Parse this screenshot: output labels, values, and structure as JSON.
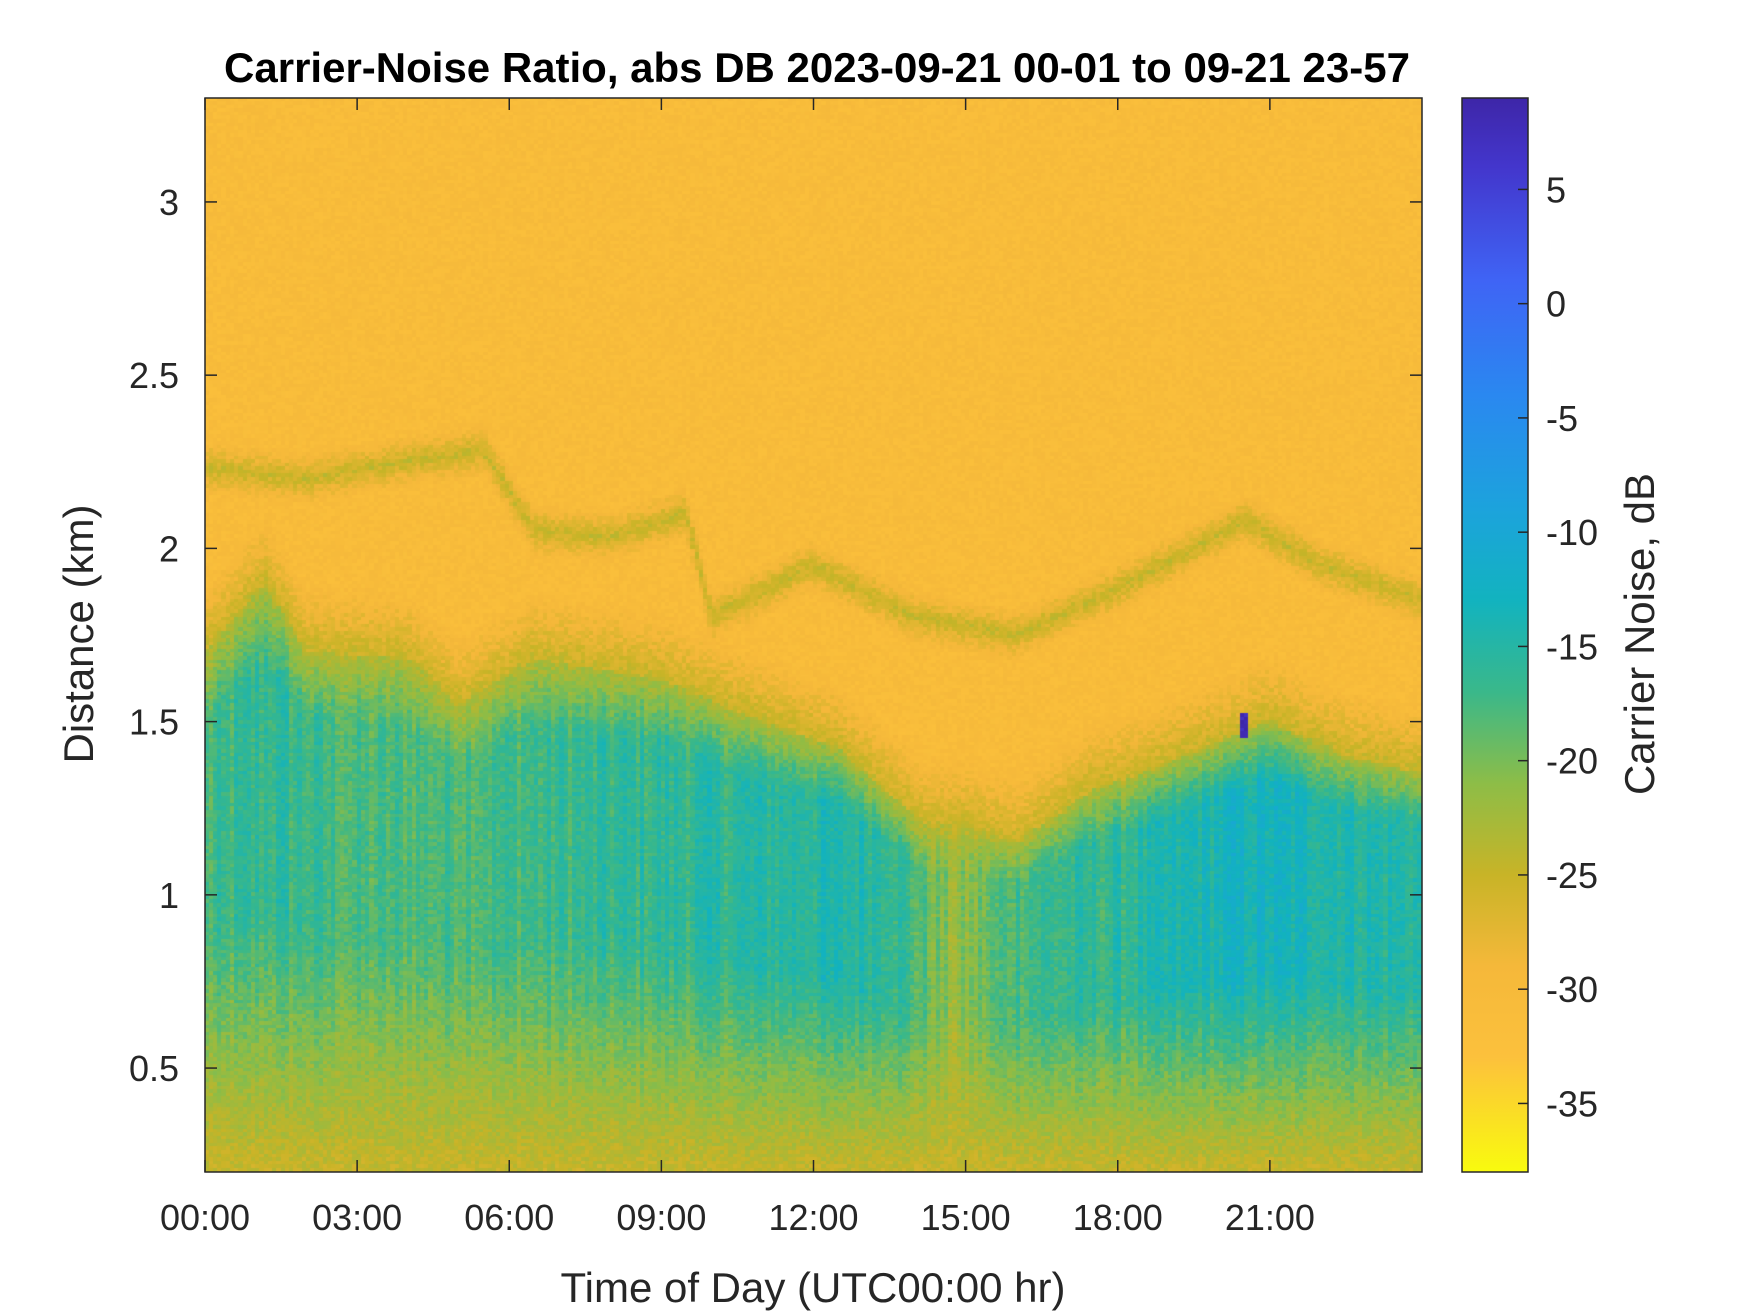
{
  "chart_data": {
    "type": "heatmap",
    "title": "Carrier-Noise Ratio, abs DB 2023-09-21 00-01 to 09-21 23-57",
    "xlabel": "Time of Day (UTC00:00 hr)",
    "ylabel": "Distance (km)",
    "colorbar_label": "Carrier Noise, dB",
    "x_ticks": [
      "00:00",
      "03:00",
      "06:00",
      "09:00",
      "12:00",
      "15:00",
      "18:00",
      "21:00"
    ],
    "x_tick_hours": [
      0,
      3,
      6,
      9,
      12,
      15,
      18,
      21
    ],
    "xlim_hours": [
      0,
      24
    ],
    "y_ticks": [
      "0.5",
      "1",
      "1.5",
      "2",
      "2.5",
      "3"
    ],
    "y_tick_values": [
      0.5,
      1,
      1.5,
      2,
      2.5,
      3
    ],
    "ylim_km": [
      0.2,
      3.3
    ],
    "colorbar_ticks": [
      "5",
      "0",
      "-5",
      "-10",
      "-15",
      "-20",
      "-25",
      "-30",
      "-35"
    ],
    "colorbar_tick_values": [
      5,
      0,
      -5,
      -10,
      -15,
      -20,
      -25,
      -30,
      -35
    ],
    "clim_db": [
      -38,
      9
    ],
    "colormap": "parula (reversed)",
    "colormap_stops": [
      {
        "value": -38,
        "color": "#f9fb0e"
      },
      {
        "value": -33,
        "color": "#fcc13c"
      },
      {
        "value": -29,
        "color": "#f5b83a"
      },
      {
        "value": -25,
        "color": "#c8b427"
      },
      {
        "value": -21,
        "color": "#8dbd47"
      },
      {
        "value": -17,
        "color": "#3ab88a"
      },
      {
        "value": -13,
        "color": "#12b3bf"
      },
      {
        "value": -9,
        "color": "#1ca3dc"
      },
      {
        "value": -4,
        "color": "#2a88f0"
      },
      {
        "value": 1,
        "color": "#3f64f5"
      },
      {
        "value": 6,
        "color": "#4336cc"
      },
      {
        "value": 9,
        "color": "#3e26a8"
      }
    ],
    "background_db": -31,
    "boundary_layer_top_km": [
      {
        "hour": 0,
        "km": 1.7
      },
      {
        "hour": 1.2,
        "km": 1.9
      },
      {
        "hour": 2,
        "km": 1.7
      },
      {
        "hour": 4,
        "km": 1.68
      },
      {
        "hour": 5,
        "km": 1.55
      },
      {
        "hour": 6.5,
        "km": 1.68
      },
      {
        "hour": 9,
        "km": 1.62
      },
      {
        "hour": 11,
        "km": 1.5
      },
      {
        "hour": 12.5,
        "km": 1.42
      },
      {
        "hour": 14.2,
        "km": 1.2
      },
      {
        "hour": 15,
        "km": 1.2
      },
      {
        "hour": 16,
        "km": 1.15
      },
      {
        "hour": 17.5,
        "km": 1.3
      },
      {
        "hour": 18.5,
        "km": 1.35
      },
      {
        "hour": 19.7,
        "km": 1.42
      },
      {
        "hour": 21,
        "km": 1.5
      },
      {
        "hour": 22.5,
        "km": 1.4
      },
      {
        "hour": 24,
        "km": 1.35
      }
    ],
    "mixed_layer_core_db": [
      {
        "hour": 0,
        "db": -18
      },
      {
        "hour": 1.3,
        "db": -16
      },
      {
        "hour": 3,
        "db": -18
      },
      {
        "hour": 6.5,
        "db": -17
      },
      {
        "hour": 9,
        "db": -16
      },
      {
        "hour": 12,
        "db": -15
      },
      {
        "hour": 13.5,
        "db": -15
      },
      {
        "hour": 14.8,
        "db": -22
      },
      {
        "hour": 16,
        "db": -17
      },
      {
        "hour": 18,
        "db": -16
      },
      {
        "hour": 20.5,
        "db": -13
      },
      {
        "hour": 22,
        "db": -14
      },
      {
        "hour": 24,
        "db": -15
      }
    ],
    "elevated_layer_km": [
      {
        "hour": 0,
        "km": 2.23
      },
      {
        "hour": 2,
        "km": 2.2
      },
      {
        "hour": 4,
        "km": 2.25
      },
      {
        "hour": 5.5,
        "km": 2.28
      },
      {
        "hour": 6.5,
        "km": 2.05
      },
      {
        "hour": 8,
        "km": 2.03
      },
      {
        "hour": 9.5,
        "km": 2.1
      },
      {
        "hour": 10,
        "km": 1.8
      },
      {
        "hour": 12,
        "km": 1.95
      },
      {
        "hour": 14,
        "km": 1.8
      },
      {
        "hour": 16,
        "km": 1.75
      },
      {
        "hour": 18,
        "km": 1.88
      },
      {
        "hour": 20.5,
        "km": 2.08
      },
      {
        "hour": 22,
        "km": 1.95
      },
      {
        "hour": 24,
        "km": 1.85
      }
    ],
    "peak": {
      "hour": 20.5,
      "km_range": [
        1.45,
        1.52
      ],
      "db": 8
    }
  }
}
